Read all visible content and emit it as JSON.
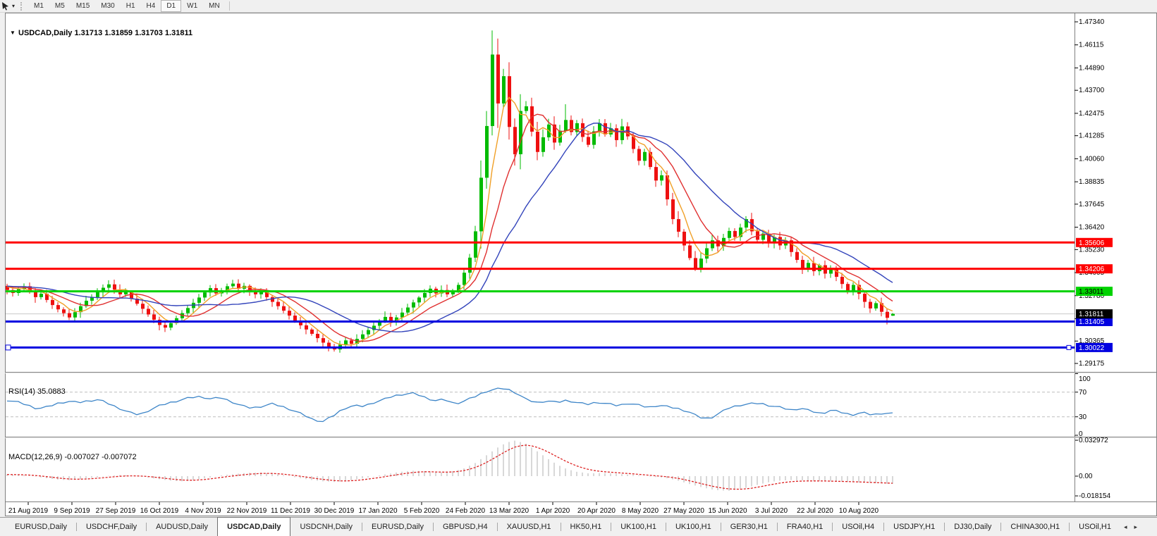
{
  "toolbar": {
    "tool_icon": "cursor-tool-icon",
    "dropdown_caret": "▾",
    "timeframes": [
      "M1",
      "M5",
      "M15",
      "M30",
      "H1",
      "H4",
      "D1",
      "W1",
      "MN"
    ],
    "active_timeframe": "D1"
  },
  "symbol": {
    "name": "USDCAD,Daily",
    "title_caret": "▼",
    "title_text": "USDCAD,Daily  1.31713 1.31859 1.31703 1.31811",
    "quote": {
      "open": 1.31713,
      "high": 1.31859,
      "low": 1.31703,
      "close": 1.31811
    }
  },
  "indicators": {
    "rsi": {
      "label": "RSI(14) 35.0883",
      "period": 14,
      "value": 35.0883,
      "axis_labels": [
        "100",
        "70",
        "30",
        "0"
      ],
      "axis_values": [
        100,
        70,
        30,
        0
      ],
      "levels": [
        70,
        30
      ]
    },
    "macd": {
      "label": "MACD(12,26,9) -0.007027 -0.007072",
      "params": "12,26,9",
      "macd_value": -0.007027,
      "signal_value": -0.007072,
      "axis_labels": [
        "0.032972",
        "0.00",
        "-0.018154"
      ],
      "axis_values": [
        0.032972,
        0,
        -0.018154
      ]
    }
  },
  "chart_data": {
    "type": "candlestick",
    "symbol": "USDCAD",
    "timeframe": "Daily",
    "grid": false,
    "ylim": [
      1.2861,
      1.4777
    ],
    "price_axis_ticks": [
      1.4734,
      1.46115,
      1.4489,
      1.437,
      1.42475,
      1.41285,
      1.4006,
      1.38835,
      1.37645,
      1.3642,
      1.3523,
      1.34005,
      1.3278,
      1.31555,
      1.30365,
      1.29175
    ],
    "date_labels": [
      "21 Aug 2019",
      "9 Sep 2019",
      "27 Sep 2019",
      "16 Oct 2019",
      "4 Nov 2019",
      "22 Nov 2019",
      "11 Dec 2019",
      "30 Dec 2019",
      "17 Jan 2020",
      "5 Feb 2020",
      "24 Feb 2020",
      "13 Mar 2020",
      "1 Apr 2020",
      "20 Apr 2020",
      "8 May 2020",
      "27 May 2020",
      "15 Jun 2020",
      "3 Jul 2020",
      "22 Jul 2020",
      "10 Aug 2020"
    ],
    "first_open": 1.333,
    "closes": [
      1.3308,
      1.3292,
      1.3313,
      1.3328,
      1.3297,
      1.327,
      1.3288,
      1.3255,
      1.3228,
      1.3205,
      1.3185,
      1.3162,
      1.319,
      1.3222,
      1.3251,
      1.327,
      1.3296,
      1.332,
      1.3338,
      1.331,
      1.3285,
      1.3296,
      1.3262,
      1.3235,
      1.3208,
      1.3178,
      1.315,
      1.3122,
      1.3108,
      1.3132,
      1.3158,
      1.3185,
      1.3212,
      1.324,
      1.3268,
      1.3295,
      1.3318,
      1.329,
      1.3306,
      1.3328,
      1.3342,
      1.3315,
      1.333,
      1.3302,
      1.3285,
      1.3298,
      1.327,
      1.3245,
      1.3222,
      1.3198,
      1.3172,
      1.3145,
      1.312,
      1.3098,
      1.3075,
      1.3052,
      1.3028,
      1.3005,
      1.2992,
      1.3018,
      1.304,
      1.3022,
      1.3048,
      1.3072,
      1.3095,
      1.3118,
      1.3142,
      1.3165,
      1.314,
      1.3162,
      1.3188,
      1.3215,
      1.3242,
      1.3268,
      1.3292,
      1.3315,
      1.329,
      1.3308,
      1.3285,
      1.3302,
      1.3335,
      1.34,
      1.348,
      1.362,
      1.3905,
      1.418,
      1.456,
      1.43,
      1.4445,
      1.4175,
      1.403,
      1.426,
      1.4285,
      1.415,
      1.4042,
      1.412,
      1.4188,
      1.4092,
      1.4155,
      1.4212,
      1.4148,
      1.4195,
      1.4122,
      1.408,
      1.4152,
      1.4195,
      1.4135,
      1.4168,
      1.4105,
      1.4178,
      1.4125,
      1.4058,
      1.3995,
      1.4042,
      1.3962,
      1.389,
      1.3918,
      1.379,
      1.3685,
      1.3618,
      1.3545,
      1.3478,
      1.342,
      1.3475,
      1.353,
      1.3572,
      1.354,
      1.3585,
      1.3622,
      1.359,
      1.364,
      1.3685,
      1.362,
      1.3575,
      1.3608,
      1.3558,
      1.359,
      1.3545,
      1.3572,
      1.351,
      1.3468,
      1.3425,
      1.3452,
      1.3408,
      1.344,
      1.3395,
      1.342,
      1.3378,
      1.334,
      1.3302,
      1.3335,
      1.3288,
      1.3245,
      1.321,
      1.3238,
      1.3192,
      1.316,
      1.31811
    ],
    "candle_overrides": {
      "86": {
        "h": 1.4688,
        "l": 1.413
      },
      "87": {
        "h": 1.4645,
        "l": 1.417
      },
      "91": {
        "h": 1.4349
      },
      "99": {
        "h": 1.4296
      },
      "156": {
        "l": 1.3125
      },
      "157": {
        "o": 1.31713,
        "h": 1.31859,
        "l": 1.31703,
        "c": 1.31811
      }
    },
    "moving_averages": [
      {
        "name": "ma-fast",
        "period": 5,
        "color": "#f0a028"
      },
      {
        "name": "ma-medium",
        "period": 10,
        "color": "#e03030"
      },
      {
        "name": "ma-slow",
        "period": 20,
        "color": "#3344bb"
      }
    ],
    "hlines": [
      {
        "price": 1.35606,
        "label": "1.35606",
        "color": "#ff0000",
        "text": "#ffffff"
      },
      {
        "price": 1.34206,
        "label": "1.34206",
        "color": "#ff0000",
        "text": "#ffffff"
      },
      {
        "price": 1.33011,
        "label": "1.33011",
        "color": "#00d200",
        "text": "#000000"
      },
      {
        "price": 1.31405,
        "label": "1.31405",
        "color": "#0000e0",
        "text": "#ffffff"
      },
      {
        "price": 1.30022,
        "label": "1.30022",
        "color": "#0000e0",
        "text": "#ffffff",
        "handles": true
      }
    ],
    "current_price": {
      "value": 1.31811,
      "label": "1.31811",
      "line_color": "#c8c8c8",
      "badge_bg": "#000000",
      "badge_text": "#ffffff"
    },
    "rsi_values": [
      57,
      54,
      49,
      43,
      46,
      52,
      55,
      53,
      56,
      58,
      51,
      44,
      37,
      33,
      41,
      48,
      53,
      57,
      61,
      63,
      59,
      61,
      55,
      48,
      44,
      47,
      51,
      47,
      41,
      34,
      26,
      22,
      31,
      43,
      48,
      47,
      53,
      58,
      64,
      67,
      68,
      62,
      56,
      58,
      51,
      56,
      63,
      71,
      75,
      76,
      69,
      58,
      53,
      56,
      53,
      57,
      53,
      50,
      54,
      51,
      48,
      52,
      49,
      45,
      49,
      46,
      43,
      38,
      29,
      27,
      36,
      45,
      49,
      51,
      52,
      48,
      45,
      41,
      44,
      39,
      35,
      41,
      37,
      33,
      37,
      33,
      36,
      35.09
    ],
    "macd_values": [
      0.0015,
      0.001,
      0.0002,
      -0.0018,
      -0.0032,
      -0.0038,
      -0.0025,
      -0.0012,
      0.0002,
      0.001,
      0.0005,
      -0.001,
      -0.0028,
      -0.0042,
      -0.0048,
      -0.0032,
      -0.0012,
      0.0008,
      0.002,
      0.003,
      0.0032,
      0.0022,
      0.0005,
      -0.0015,
      -0.0035,
      -0.0048,
      -0.0054,
      -0.0042,
      -0.0022,
      -0.0002,
      0.0018,
      0.0038,
      0.005,
      0.0046,
      0.0032,
      0.0038,
      0.0065,
      0.012,
      0.02,
      0.028,
      0.033,
      0.03,
      0.022,
      0.014,
      0.0075,
      0.004,
      0.0025,
      0.0028,
      0.0024,
      0.0015,
      0.0005,
      -0.0005,
      -0.0015,
      -0.004,
      -0.0075,
      -0.0105,
      -0.0128,
      -0.0135,
      -0.012,
      -0.009,
      -0.006,
      -0.0042,
      -0.0036,
      -0.004,
      -0.0044,
      -0.0048,
      -0.0052,
      -0.0056,
      -0.0062,
      -0.0066,
      -0.00703
    ],
    "colors": {
      "up": "#00bb00",
      "down": "#ee1010",
      "rsi_line": "#3d85c8",
      "macd_hist": "#b0b0b0",
      "macd_signal": "#dd2222",
      "axis_text": "#000000",
      "level_dash": "#bdbdbd",
      "panel_border": "#808080"
    }
  },
  "tabs": {
    "items": [
      "EURUSD,Daily",
      "USDCHF,Daily",
      "AUDUSD,Daily",
      "USDCAD,Daily",
      "USDCNH,Daily",
      "EURUSD,Daily",
      "GBPUSD,H4",
      "XAUUSD,H1",
      "HK50,H1",
      "UK100,H1",
      "UK100,H1",
      "GER30,H1",
      "FRA40,H1",
      "USOil,H4",
      "USDJPY,H1",
      "DJ30,Daily",
      "CHINA300,H1",
      "USOil,H1"
    ],
    "active_index": 3,
    "scroll_left": "◂",
    "scroll_right": "▸"
  }
}
